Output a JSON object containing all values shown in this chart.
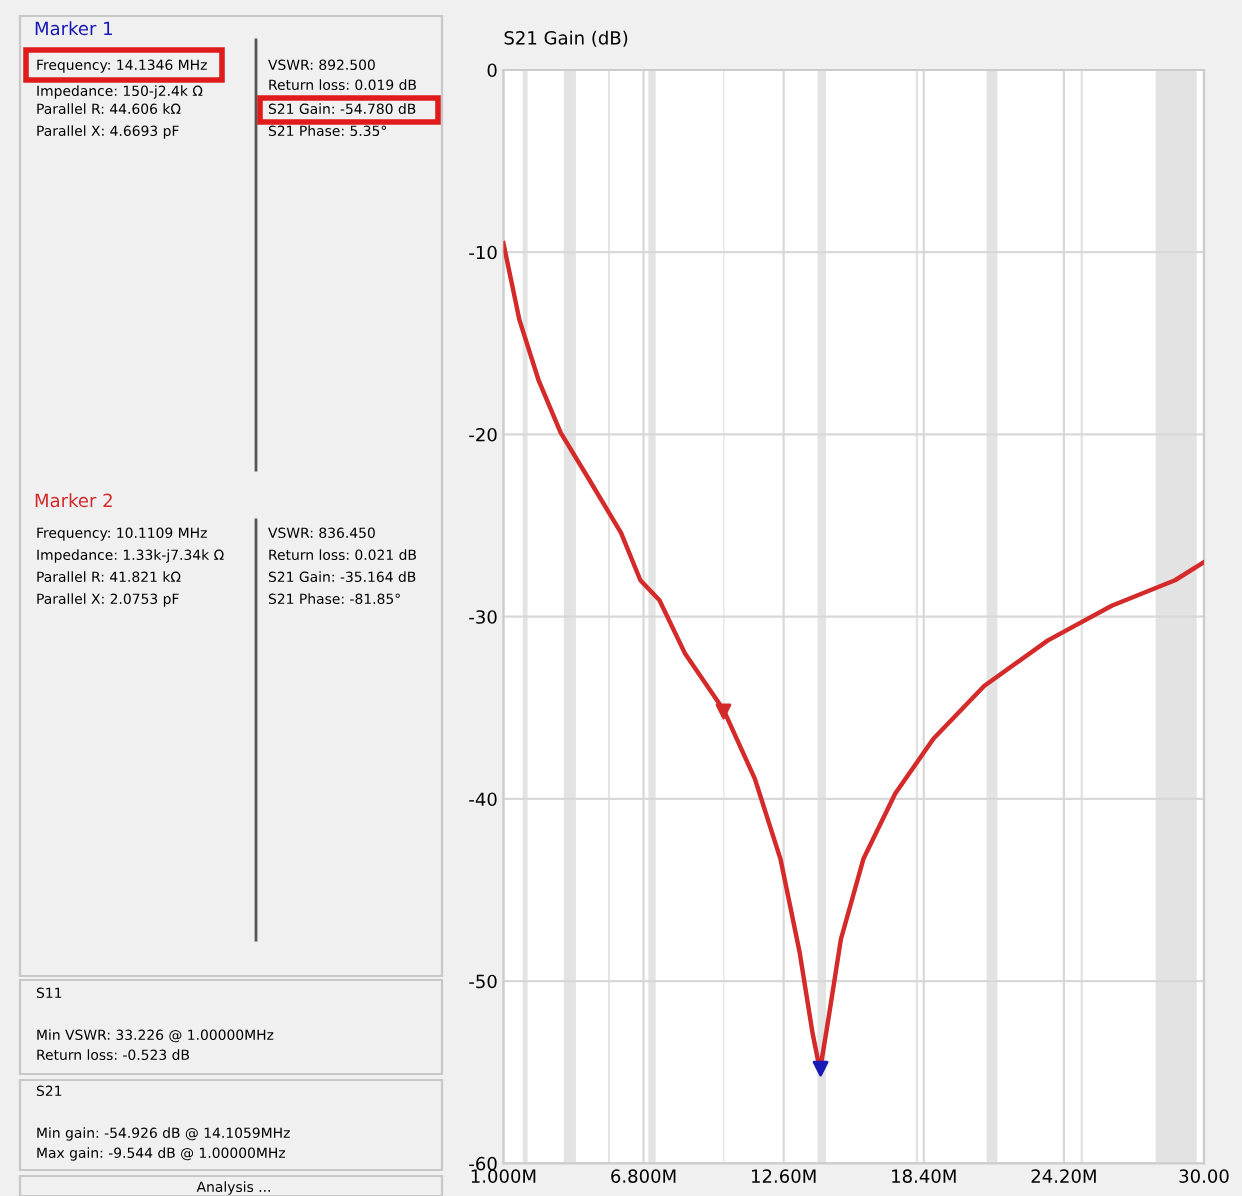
{
  "chart_data": {
    "type": "line",
    "ylabel": "S21 Gain (dB)",
    "xlim": [
      1,
      30
    ],
    "xticks": [
      {
        "value": 1,
        "label": "1.000M"
      },
      {
        "value": 6.8,
        "label": "6.800M"
      },
      {
        "value": 12.6,
        "label": "12.60M"
      },
      {
        "value": 18.4,
        "label": "18.40M"
      },
      {
        "value": 24.2,
        "label": "24.20M"
      },
      {
        "value": 30,
        "label": "30.00"
      }
    ],
    "ylim": [
      -60,
      0
    ],
    "yticks": [
      0,
      -10,
      -20,
      -30,
      -40,
      -50,
      -60
    ],
    "grid": true,
    "series": [
      {
        "color": "#d42a2a",
        "marker": "none",
        "line_style": "solid",
        "x": [
          1.0,
          1.66,
          2.45,
          3.37,
          4.56,
          5.87,
          6.67,
          7.46,
          8.51,
          10.11,
          11.41,
          12.47,
          13.26,
          13.79,
          14.106,
          14.45,
          14.97,
          15.9,
          17.22,
          18.8,
          20.9,
          23.54,
          26.18,
          28.8,
          30.0
        ],
        "values": [
          -9.5,
          -13.7,
          -17.0,
          -19.9,
          -22.5,
          -25.4,
          -28.0,
          -29.1,
          -32.0,
          -35.1,
          -38.9,
          -43.3,
          -48.4,
          -52.8,
          -54.9,
          -52.1,
          -47.7,
          -43.3,
          -39.7,
          -36.7,
          -33.8,
          -31.3,
          -29.4,
          -28.0,
          -27.0
        ]
      },
      {
        "type": "scatter",
        "name": "Marker 1",
        "color": "#1a1ab4",
        "marker": "triangle",
        "x": [
          14.13
        ],
        "values": [
          -54.8
        ]
      },
      {
        "type": "scatter",
        "name": "Marker 2",
        "color": "#d42a2a",
        "marker": "triangle",
        "x": [
          10.11
        ],
        "values": [
          -35.2
        ]
      }
    ],
    "bands": [
      {
        "axis": "x",
        "from": 1.8,
        "to": 2.0,
        "color": "#e3e3e3"
      },
      {
        "axis": "x",
        "from": 3.5,
        "to": 4.0,
        "color": "#e3e3e3"
      },
      {
        "axis": "x",
        "from": 5.33,
        "to": 5.41,
        "color": "#e3e3e3"
      },
      {
        "axis": "x",
        "from": 7.0,
        "to": 7.3,
        "color": "#e3e3e3"
      },
      {
        "axis": "x",
        "from": 10.1,
        "to": 10.15,
        "color": "#e3e3e3"
      },
      {
        "axis": "x",
        "from": 14.0,
        "to": 14.35,
        "color": "#e3e3e3"
      },
      {
        "axis": "x",
        "from": 18.068,
        "to": 18.168,
        "color": "#e3e3e3"
      },
      {
        "axis": "x",
        "from": 21.0,
        "to": 21.45,
        "color": "#e3e3e3"
      },
      {
        "axis": "x",
        "from": 24.89,
        "to": 24.99,
        "color": "#e3e3e3"
      },
      {
        "axis": "x",
        "from": 28.0,
        "to": 29.7,
        "color": "#e3e3e3"
      }
    ],
    "annotations": [
      "Frequency: 14.1346 MHz",
      "Impedance: 150-j2.4k Ω",
      "Parallel R: 44.606 kΩ",
      "Parallel X: 4.6693 pF",
      "VSWR: 892.500",
      "Return loss: 0.019 dB",
      "S21 Gain: -54.780 dB",
      "S21 Phase: 5.35°",
      "Frequency: 10.1109 MHz",
      "Impedance: 1.33k-j7.34k Ω",
      "Parallel R: 41.821 kΩ",
      "Parallel X: 2.0753 pF",
      "VSWR: 836.450",
      "Return loss: 0.021 dB",
      "S21 Gain: -35.164 dB",
      "S21 Phase: -81.85°",
      "S11",
      "Min VSWR: 33.226 @ 1.00000MHz",
      "Return loss: -0.523 dB",
      "S21",
      "Min gain: -54.926 dB @ 14.1059MHz",
      "Max gain: -9.544 dB @ 1.00000MHz",
      "Analysis ..."
    ]
  }
}
